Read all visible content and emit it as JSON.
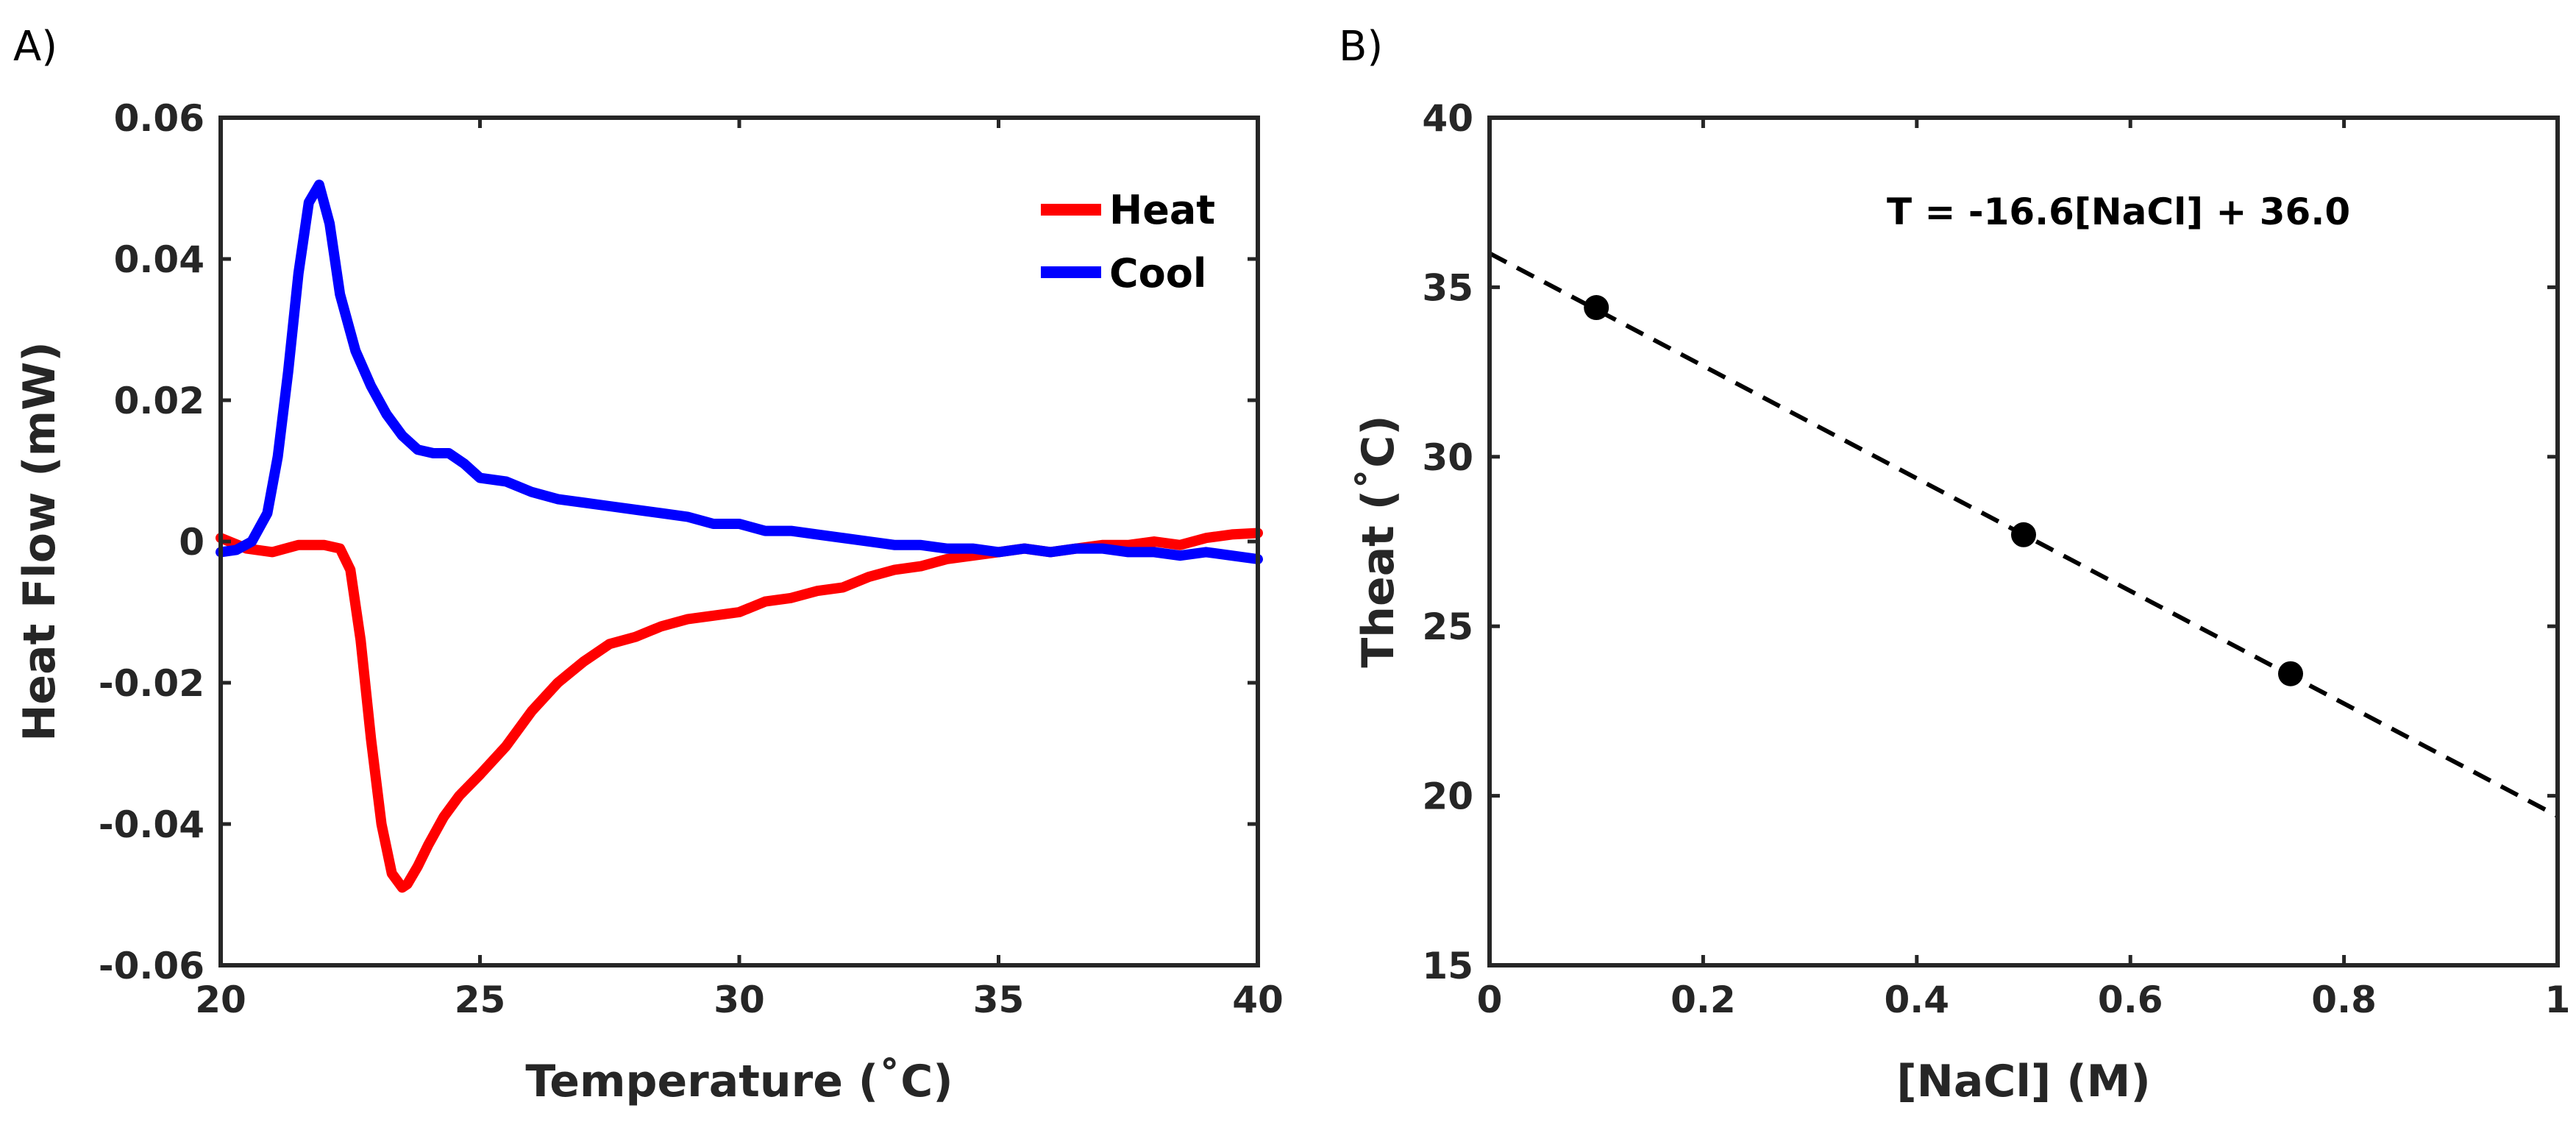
{
  "colors": {
    "heat": "#ff0000",
    "cool": "#0000ff",
    "axis": "#262626",
    "marker": "#000000"
  },
  "chart_data": [
    {
      "panel": "A)",
      "type": "line",
      "title": "",
      "xlabel": "Temperature (˚C)",
      "ylabel": "Heat Flow (mW)",
      "xlim": [
        20,
        40
      ],
      "ylim": [
        -0.06,
        0.06
      ],
      "xticks": [
        20,
        25,
        30,
        35,
        40
      ],
      "xtick_labels": [
        "20",
        "25",
        "30",
        "35",
        "40"
      ],
      "yticks": [
        -0.06,
        -0.04,
        -0.02,
        0,
        0.02,
        0.04,
        0.06
      ],
      "ytick_labels": [
        "-0.06",
        "-0.04",
        "-0.02",
        "0",
        "0.02",
        "0.04",
        "0.06"
      ],
      "legend": {
        "placement": "top-right"
      },
      "series": [
        {
          "name": "Heat",
          "color": "#ff0000",
          "x": [
            20,
            20.5,
            21,
            21.5,
            22,
            22.3,
            22.5,
            22.7,
            22.9,
            23.1,
            23.3,
            23.5,
            23.6,
            23.8,
            24.0,
            24.3,
            24.6,
            25,
            25.5,
            26,
            26.5,
            27,
            27.5,
            28,
            28.5,
            29,
            29.5,
            30,
            30.5,
            31,
            31.5,
            32,
            32.5,
            33,
            33.5,
            34,
            34.5,
            35,
            35.5,
            36,
            36.5,
            37,
            37.5,
            38,
            38.5,
            39,
            39.5,
            40
          ],
          "y": [
            0.0005,
            -0.001,
            -0.0015,
            -0.0005,
            -0.0005,
            -0.001,
            -0.004,
            -0.014,
            -0.028,
            -0.04,
            -0.047,
            -0.049,
            -0.0485,
            -0.046,
            -0.043,
            -0.039,
            -0.036,
            -0.033,
            -0.029,
            -0.024,
            -0.02,
            -0.017,
            -0.0145,
            -0.0135,
            -0.012,
            -0.011,
            -0.0105,
            -0.01,
            -0.0085,
            -0.008,
            -0.007,
            -0.0065,
            -0.005,
            -0.004,
            -0.0035,
            -0.0025,
            -0.002,
            -0.0015,
            -0.001,
            -0.0015,
            -0.001,
            -0.0005,
            -0.0005,
            0.0,
            -0.0005,
            0.0005,
            0.001,
            0.0012
          ]
        },
        {
          "name": "Cool",
          "color": "#0000ff",
          "x": [
            20,
            20.3,
            20.6,
            20.9,
            21.1,
            21.3,
            21.5,
            21.7,
            21.9,
            22.1,
            22.3,
            22.6,
            22.9,
            23.2,
            23.5,
            23.8,
            24.1,
            24.4,
            24.7,
            25,
            25.5,
            26,
            26.5,
            27,
            27.5,
            28,
            28.5,
            29,
            29.5,
            30,
            30.5,
            31,
            31.5,
            32,
            32.5,
            33,
            33.5,
            34,
            34.5,
            35,
            35.5,
            36,
            36.5,
            37,
            37.5,
            38,
            38.5,
            39,
            39.5,
            40
          ],
          "y": [
            -0.0015,
            -0.0012,
            0.0,
            0.004,
            0.012,
            0.024,
            0.038,
            0.048,
            0.0505,
            0.045,
            0.035,
            0.027,
            0.022,
            0.018,
            0.015,
            0.013,
            0.0125,
            0.0125,
            0.011,
            0.009,
            0.0085,
            0.007,
            0.006,
            0.0055,
            0.005,
            0.0045,
            0.004,
            0.0035,
            0.0025,
            0.0025,
            0.0015,
            0.0015,
            0.001,
            0.0005,
            0.0,
            -0.0005,
            -0.0005,
            -0.001,
            -0.001,
            -0.0015,
            -0.001,
            -0.0015,
            -0.001,
            -0.001,
            -0.0015,
            -0.0015,
            -0.002,
            -0.0015,
            -0.002,
            -0.0025
          ]
        }
      ]
    },
    {
      "panel": "B)",
      "type": "scatter",
      "title": "",
      "xlabel": "[NaCl] (M)",
      "ylabel": "Theat (˚C)",
      "xlim": [
        0,
        1
      ],
      "ylim": [
        15,
        40
      ],
      "xticks": [
        0,
        0.2,
        0.4,
        0.6,
        0.8,
        1
      ],
      "xtick_labels": [
        "0",
        "0.2",
        "0.4",
        "0.6",
        "0.8",
        "1"
      ],
      "yticks": [
        15,
        20,
        25,
        30,
        35,
        40
      ],
      "ytick_labels": [
        "15",
        "20",
        "25",
        "30",
        "35",
        "40"
      ],
      "points": {
        "x": [
          0.1,
          0.5,
          0.75
        ],
        "y": [
          34.4,
          27.7,
          23.6
        ]
      },
      "fit": {
        "slope": -16.6,
        "intercept": 36.0,
        "style": "dashed"
      },
      "annotation": "T = -16.6[NaCl] + 36.0"
    }
  ]
}
